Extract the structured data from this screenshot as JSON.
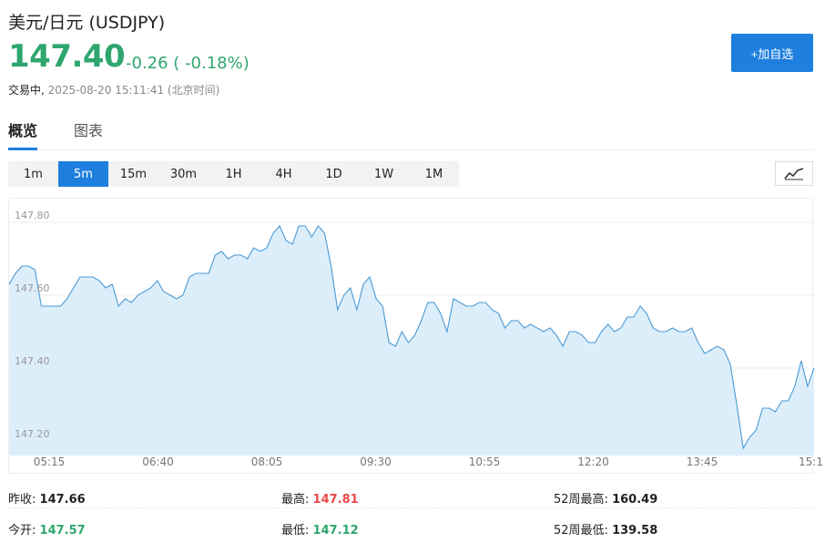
{
  "header": {
    "title": "美元/日元  (USDJPY)",
    "price": "147.40",
    "change": "-0.26 ( -0.18%)",
    "status_state": "交易中,",
    "status_time": "2025-08-20 15:11:41 (北京时间)",
    "add_button": "+加自选"
  },
  "tabs": [
    {
      "label": "概览"
    },
    {
      "label": "图表"
    }
  ],
  "periods": [
    {
      "label": "1m"
    },
    {
      "label": "5m"
    },
    {
      "label": "15m"
    },
    {
      "label": "30m"
    },
    {
      "label": "1H"
    },
    {
      "label": "4H"
    },
    {
      "label": "1D"
    },
    {
      "label": "1W"
    },
    {
      "label": "1M"
    }
  ],
  "active_period": "5m",
  "colors": {
    "up": "#e84a4a",
    "down": "#2fa66e",
    "accent": "#1e7fde",
    "line": "#4a9ad4",
    "fill": "#ddeefb"
  },
  "chart_data": {
    "type": "area",
    "ylim": [
      147.16,
      147.84
    ],
    "y_ticks": [
      "147.80",
      "147.60",
      "147.40",
      "147.20"
    ],
    "x_labels": [
      "05:15",
      "06:40",
      "08:05",
      "09:30",
      "10:55",
      "12:20",
      "13:45",
      "15:1"
    ],
    "values": [
      147.63,
      147.66,
      147.68,
      147.68,
      147.67,
      147.57,
      147.57,
      147.57,
      147.57,
      147.59,
      147.62,
      147.65,
      147.65,
      147.65,
      147.64,
      147.62,
      147.63,
      147.57,
      147.59,
      147.58,
      147.6,
      147.61,
      147.62,
      147.64,
      147.61,
      147.6,
      147.59,
      147.6,
      147.65,
      147.66,
      147.66,
      147.66,
      147.71,
      147.72,
      147.7,
      147.71,
      147.71,
      147.7,
      147.73,
      147.72,
      147.73,
      147.77,
      147.79,
      147.75,
      147.74,
      147.79,
      147.79,
      147.76,
      147.79,
      147.77,
      147.68,
      147.56,
      147.6,
      147.62,
      147.56,
      147.63,
      147.65,
      147.59,
      147.57,
      147.47,
      147.46,
      147.5,
      147.47,
      147.49,
      147.53,
      147.58,
      147.58,
      147.55,
      147.5,
      147.59,
      147.58,
      147.57,
      147.57,
      147.58,
      147.58,
      147.56,
      147.55,
      147.51,
      147.53,
      147.53,
      147.51,
      147.52,
      147.51,
      147.5,
      147.51,
      147.49,
      147.46,
      147.5,
      147.5,
      147.49,
      147.47,
      147.47,
      147.5,
      147.52,
      147.5,
      147.51,
      147.54,
      147.54,
      147.57,
      147.55,
      147.51,
      147.5,
      147.5,
      147.51,
      147.5,
      147.5,
      147.51,
      147.47,
      147.44,
      147.45,
      147.46,
      147.45,
      147.41,
      147.3,
      147.18,
      147.21,
      147.23,
      147.29,
      147.29,
      147.28,
      147.31,
      147.31,
      147.35,
      147.42,
      147.35,
      147.4
    ]
  },
  "stats": {
    "prev_close_label": "昨收:",
    "prev_close": "147.66",
    "high_label": "最高:",
    "high": "147.81",
    "week52_high_label": "52周最高:",
    "week52_high": "160.49",
    "open_label": "今开:",
    "open": "147.57",
    "low_label": "最低:",
    "low": "147.12",
    "week52_low_label": "52周最低:",
    "week52_low": "139.58"
  }
}
